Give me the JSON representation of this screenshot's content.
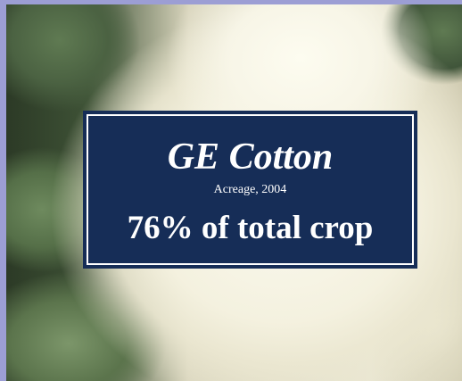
{
  "slide": {
    "title": "GE Cotton",
    "subtitle": "Acreage, 2004",
    "statement": "76% of total crop"
  }
}
